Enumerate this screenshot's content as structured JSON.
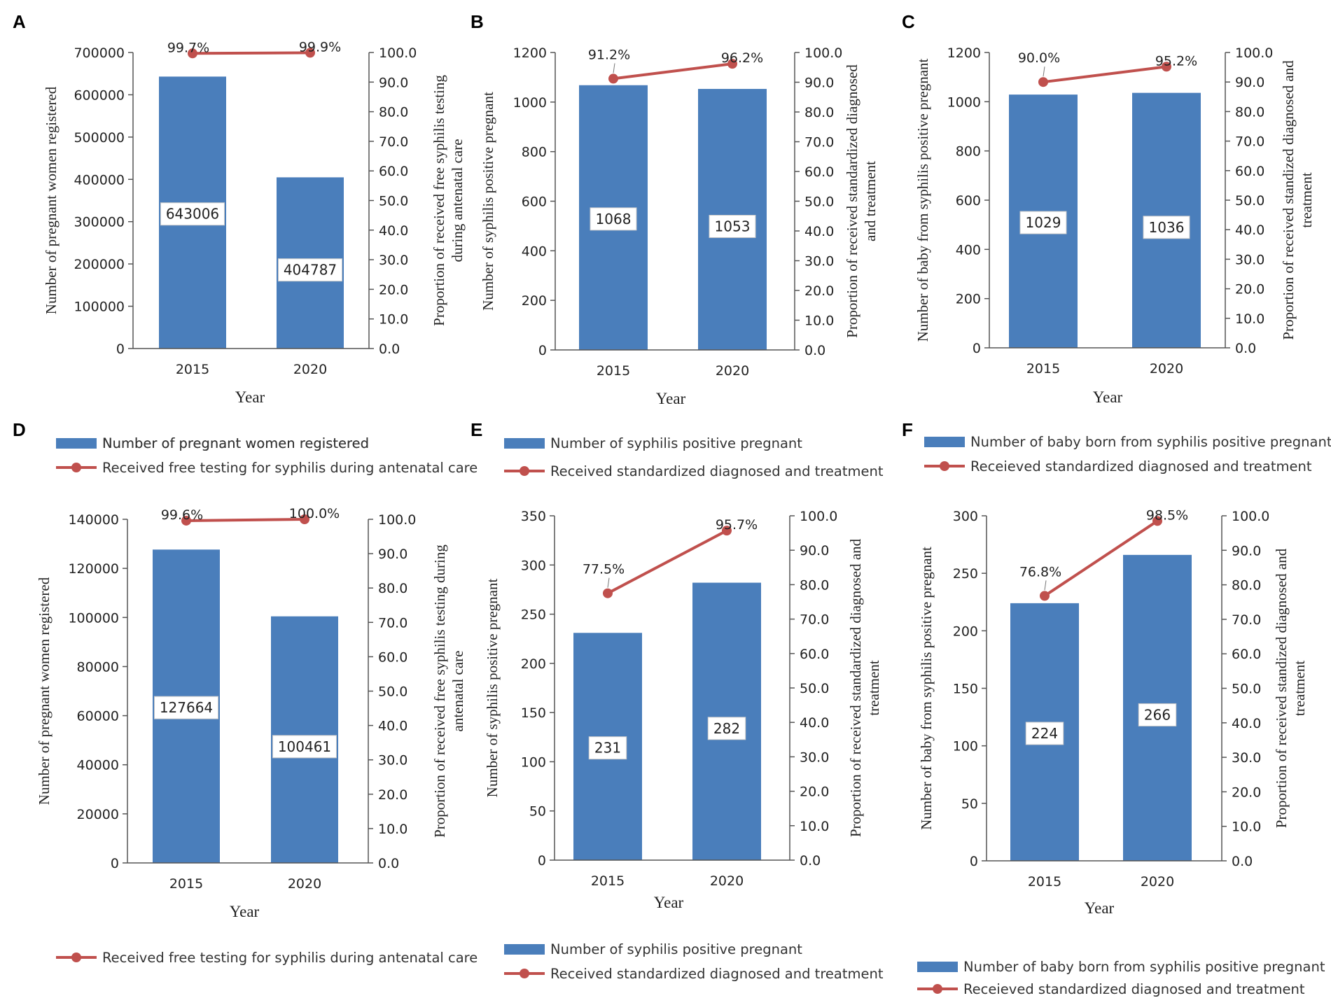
{
  "colors": {
    "bar": "#4a7ebb",
    "bar_edge": "#3d6ba3",
    "line": "#c0504d",
    "axis": "#555555"
  },
  "chart_data": [
    {
      "type": "bar+line",
      "panel": "A",
      "categories": [
        "2015",
        "2020"
      ],
      "values": [
        643006,
        404787
      ],
      "value_labels": [
        "643006",
        "404787"
      ],
      "line_values": [
        99.7,
        99.9
      ],
      "line_labels": [
        "99.7%",
        "99.9%"
      ],
      "xlabel": "Year",
      "ylabel_left": [
        "Number of pregnant women registered"
      ],
      "ylabel_right": [
        "Proportion of received free syphilis testing",
        "during antenatal care"
      ],
      "ylim_left": [
        0,
        700000
      ],
      "ylim_right": [
        0,
        100
      ],
      "left_ticks": [
        "0",
        "100000",
        "200000",
        "300000",
        "400000",
        "500000",
        "600000",
        "700000"
      ],
      "right_ticks": [
        "0.0",
        "10.0",
        "20.0",
        "30.0",
        "40.0",
        "50.0",
        "60.0",
        "70.0",
        "80.0",
        "90.0",
        "100.0"
      ],
      "legend": null
    },
    {
      "type": "bar+line",
      "panel": "B",
      "categories": [
        "2015",
        "2020"
      ],
      "values": [
        1068,
        1053
      ],
      "value_labels": [
        "1068",
        "1053"
      ],
      "line_values": [
        91.2,
        96.2
      ],
      "line_labels": [
        "91.2%",
        "96.2%"
      ],
      "xlabel": "Year",
      "ylabel_left": [
        "Number of syphilis positive pregnant"
      ],
      "ylabel_right": [
        "Proportion of received standardized diagnosed",
        "and treatment"
      ],
      "ylim_left": [
        0,
        1200
      ],
      "ylim_right": [
        0,
        100
      ],
      "left_ticks": [
        "0",
        "200",
        "400",
        "600",
        "800",
        "1000",
        "1200"
      ],
      "right_ticks": [
        "0.0",
        "10.0",
        "20.0",
        "30.0",
        "40.0",
        "50.0",
        "60.0",
        "70.0",
        "80.0",
        "90.0",
        "100.0"
      ],
      "legend": null
    },
    {
      "type": "bar+line",
      "panel": "C",
      "categories": [
        "2015",
        "2020"
      ],
      "values": [
        1029,
        1036
      ],
      "value_labels": [
        "1029",
        "1036"
      ],
      "line_values": [
        90.0,
        95.2
      ],
      "line_labels": [
        "90.0%",
        "95.2%"
      ],
      "xlabel": "Year",
      "ylabel_left": [
        "Number of baby from syphilis positive pregnant"
      ],
      "ylabel_right": [
        "Proportion of received standized diagnosed and",
        "treatment"
      ],
      "ylim_left": [
        0,
        1200
      ],
      "ylim_right": [
        0,
        100
      ],
      "left_ticks": [
        "0",
        "200",
        "400",
        "600",
        "800",
        "1000",
        "1200"
      ],
      "right_ticks": [
        "0.0",
        "10.0",
        "20.0",
        "30.0",
        "40.0",
        "50.0",
        "60.0",
        "70.0",
        "80.0",
        "90.0",
        "100.0"
      ],
      "legend": null
    },
    {
      "type": "bar+line",
      "panel": "D",
      "categories": [
        "2015",
        "2020"
      ],
      "values": [
        127664,
        100461
      ],
      "value_labels": [
        "127664",
        "100461"
      ],
      "line_values": [
        99.6,
        100.0
      ],
      "line_labels": [
        "99.6%",
        "100.0%"
      ],
      "xlabel": "Year",
      "ylabel_left": [
        "Number of pregnant women registered"
      ],
      "ylabel_right": [
        "Proportion of received free syphilis testing during",
        "antenatal care"
      ],
      "ylim_left": [
        0,
        140000
      ],
      "ylim_right": [
        0,
        100
      ],
      "left_ticks": [
        "0",
        "20000",
        "40000",
        "60000",
        "80000",
        "100000",
        "120000",
        "140000"
      ],
      "right_ticks": [
        "0.0",
        "10.0",
        "20.0",
        "30.0",
        "40.0",
        "50.0",
        "60.0",
        "70.0",
        "80.0",
        "90.0",
        "100.0"
      ],
      "legend": {
        "bar": "Number of pregnant women registered",
        "line": "Received free testing for syphilis during antenatal care"
      }
    },
    {
      "type": "bar+line",
      "panel": "E",
      "categories": [
        "2015",
        "2020"
      ],
      "values": [
        231,
        282
      ],
      "value_labels": [
        "231",
        "282"
      ],
      "line_values": [
        77.5,
        95.7
      ],
      "line_labels": [
        "77.5%",
        "95.7%"
      ],
      "xlabel": "Year",
      "ylabel_left": [
        "Number of syphilis positive pregnant"
      ],
      "ylabel_right": [
        "Proportion of received standardized diagnosed and",
        "treatment"
      ],
      "ylim_left": [
        0,
        350
      ],
      "ylim_right": [
        0,
        100
      ],
      "left_ticks": [
        "0",
        "50",
        "100",
        "150",
        "200",
        "250",
        "300",
        "350"
      ],
      "right_ticks": [
        "0.0",
        "10.0",
        "20.0",
        "30.0",
        "40.0",
        "50.0",
        "60.0",
        "70.0",
        "80.0",
        "90.0",
        "100.0"
      ],
      "legend": {
        "bar": "Number of syphilis  positive pregnant",
        "line": "Received standardized diagnosed and treatment"
      }
    },
    {
      "type": "bar+line",
      "panel": "F",
      "categories": [
        "2015",
        "2020"
      ],
      "values": [
        224,
        266
      ],
      "value_labels": [
        "224",
        "266"
      ],
      "line_values": [
        76.8,
        98.5
      ],
      "line_labels": [
        "76.8%",
        "98.5%"
      ],
      "xlabel": "Year",
      "ylabel_left": [
        "Number of baby from syphilis positive pregnant"
      ],
      "ylabel_right": [
        "Proportion of received standized diagnosed and",
        "treatment"
      ],
      "ylim_left": [
        0,
        300
      ],
      "ylim_right": [
        0,
        100
      ],
      "left_ticks": [
        "0",
        "50",
        "100",
        "150",
        "200",
        "250",
        "300"
      ],
      "right_ticks": [
        "0.0",
        "10.0",
        "20.0",
        "30.0",
        "40.0",
        "50.0",
        "60.0",
        "70.0",
        "80.0",
        "90.0",
        "100.0"
      ],
      "legend": {
        "bar": "Number of baby born from syphilis positive pregnant",
        "line": "Receieved standardized diagnosed and treatment"
      }
    }
  ]
}
